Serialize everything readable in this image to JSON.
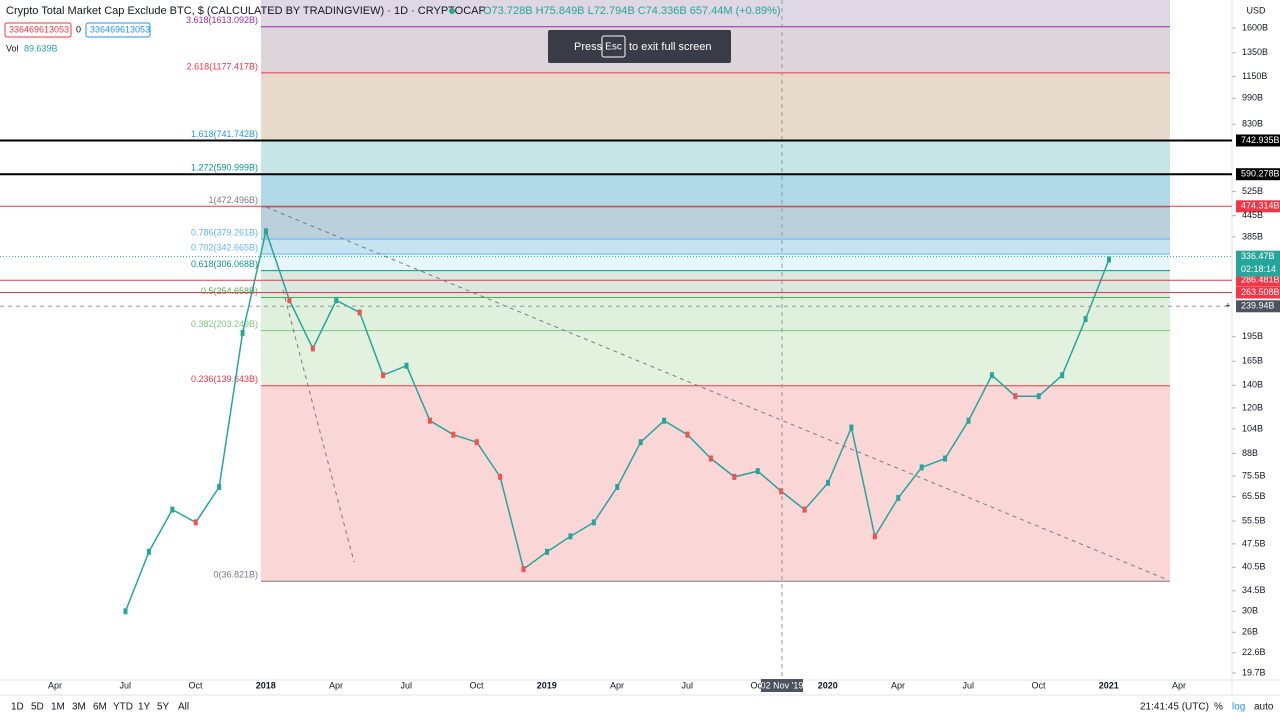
{
  "header": {
    "symbol": "Crypto Total Market Cap Exclude BTC, $ (CALCULATED BY TRADINGVIEW) · 1D · CRYPTOCAP",
    "ohlc": "O73.728B H75.849B L72.794B C74.336B 657.44M (+0.89%)",
    "input_a": "336469613053",
    "input_sep": "0",
    "input_b": "336469613053",
    "volume": "Vol",
    "volume_value": "89.639B"
  },
  "toast": {
    "before": "Press",
    "key": "Esc",
    "after": "to exit full screen"
  },
  "currency": "USD",
  "y_axis": [
    {
      "value": 1600,
      "label": "1600B"
    },
    {
      "value": 1350,
      "label": "1350B"
    },
    {
      "value": 1150,
      "label": "1150B"
    },
    {
      "value": 990,
      "label": "990B"
    },
    {
      "value": 830,
      "label": "830B"
    },
    {
      "value": 525,
      "label": "525B"
    },
    {
      "value": 445,
      "label": "445B"
    },
    {
      "value": 385,
      "label": "385B"
    },
    {
      "value": 195,
      "label": "195B"
    },
    {
      "value": 165,
      "label": "165B"
    },
    {
      "value": 140,
      "label": "140B"
    },
    {
      "value": 120,
      "label": "120B"
    },
    {
      "value": 104,
      "label": "104B"
    },
    {
      "value": 88,
      "label": "88B"
    },
    {
      "value": 75.5,
      "label": "75.5B"
    },
    {
      "value": 65.5,
      "label": "65.5B"
    },
    {
      "value": 55.5,
      "label": "55.5B"
    },
    {
      "value": 47.5,
      "label": "47.5B"
    },
    {
      "value": 40.5,
      "label": "40.5B"
    },
    {
      "value": 34.5,
      "label": "34.5B"
    },
    {
      "value": 30,
      "label": "30B"
    },
    {
      "value": 26,
      "label": "26B"
    },
    {
      "value": 22.6,
      "label": "22.6B"
    },
    {
      "value": 19.7,
      "label": "19.7B"
    }
  ],
  "fib_levels": [
    {
      "label": "3.618(1613.092B)",
      "value": 1613.092,
      "color": "#9c27b0",
      "zone": "#dcd3e0"
    },
    {
      "label": "2.618(1177.417B)",
      "value": 1177.417,
      "color": "#f23645",
      "zone": "#d8d1d6"
    },
    {
      "label": "1.618(741.742B)",
      "value": 741.742,
      "color": "#2196f3",
      "zone": "#e4d6c5"
    },
    {
      "label": "1.272(590.999B)",
      "value": 590.999,
      "color": "#089981",
      "zone": "#bfe2e4"
    },
    {
      "label": "1(472.496B)",
      "value": 472.496,
      "color": "#787b86",
      "zone": "#a8d6e6"
    },
    {
      "label": "0.786(379.261B)",
      "value": 379.261,
      "color": "#64b5f6",
      "zone": "#b2cbd6"
    },
    {
      "label": "0.702(342.665B)",
      "value": 342.665,
      "color": "#64b5f6",
      "zone": "#bfe0ee"
    },
    {
      "label": "0.618(306.068B)",
      "value": 306.068,
      "color": "#089981",
      "zone": "#e6f4fb"
    },
    {
      "label": "0.5(254.658B)",
      "value": 254.658,
      "color": "#4caf50",
      "zone": "#d6e6dc"
    },
    {
      "label": "0.382(203.249B)",
      "value": 203.249,
      "color": "#81c784",
      "zone": "#dcefd8"
    },
    {
      "label": "0.236(139.643B)",
      "value": 139.643,
      "color": "#f23645",
      "zone": "#e0f1dc"
    },
    {
      "label": "0(36.821B)",
      "value": 36.821,
      "color": "#787b86",
      "zone": "#fbd2d2"
    }
  ],
  "price_lines": [
    {
      "value": 742.935,
      "label": "742.935B",
      "color": "#000000"
    },
    {
      "value": 590.278,
      "label": "590.278B",
      "color": "#000000"
    },
    {
      "value": 474.314,
      "label": "474.314B",
      "color": "#f23645"
    },
    {
      "value": 286.481,
      "label": "286.481B",
      "color": "#f23645"
    },
    {
      "value": 263.508,
      "label": "263.508B",
      "color": "#f23645"
    }
  ],
  "last_price": {
    "value": 336.47,
    "label": "336.47B",
    "countdown": "02:18:14"
  },
  "crosshair": {
    "value": 239.94,
    "label": "239.94B",
    "date": "02 Nov '19"
  },
  "price_monthly": [
    30,
    45,
    60,
    55,
    70,
    200,
    400,
    250,
    180,
    250,
    230,
    150,
    160,
    110,
    100,
    95,
    75,
    40,
    45,
    50,
    55,
    70,
    95,
    110,
    100,
    85,
    75,
    78,
    68,
    60,
    72,
    105,
    50,
    65,
    80,
    85,
    110,
    150,
    130,
    130,
    150,
    220,
    330
  ],
  "x_axis": [
    "Apr",
    "Jul",
    "Oct",
    "2018",
    "Apr",
    "Jul",
    "Oct",
    "2019",
    "Apr",
    "Jul",
    "Oct",
    "2020",
    "Apr",
    "Jul",
    "Oct",
    "2021",
    "Apr"
  ],
  "toolbar": {
    "ranges": [
      "1D",
      "5D",
      "1M",
      "3M",
      "6M",
      "YTD",
      "1Y",
      "5Y",
      "All"
    ],
    "clock": "21:41:45 (UTC)",
    "percent": "%",
    "log": "log",
    "auto": "auto"
  }
}
